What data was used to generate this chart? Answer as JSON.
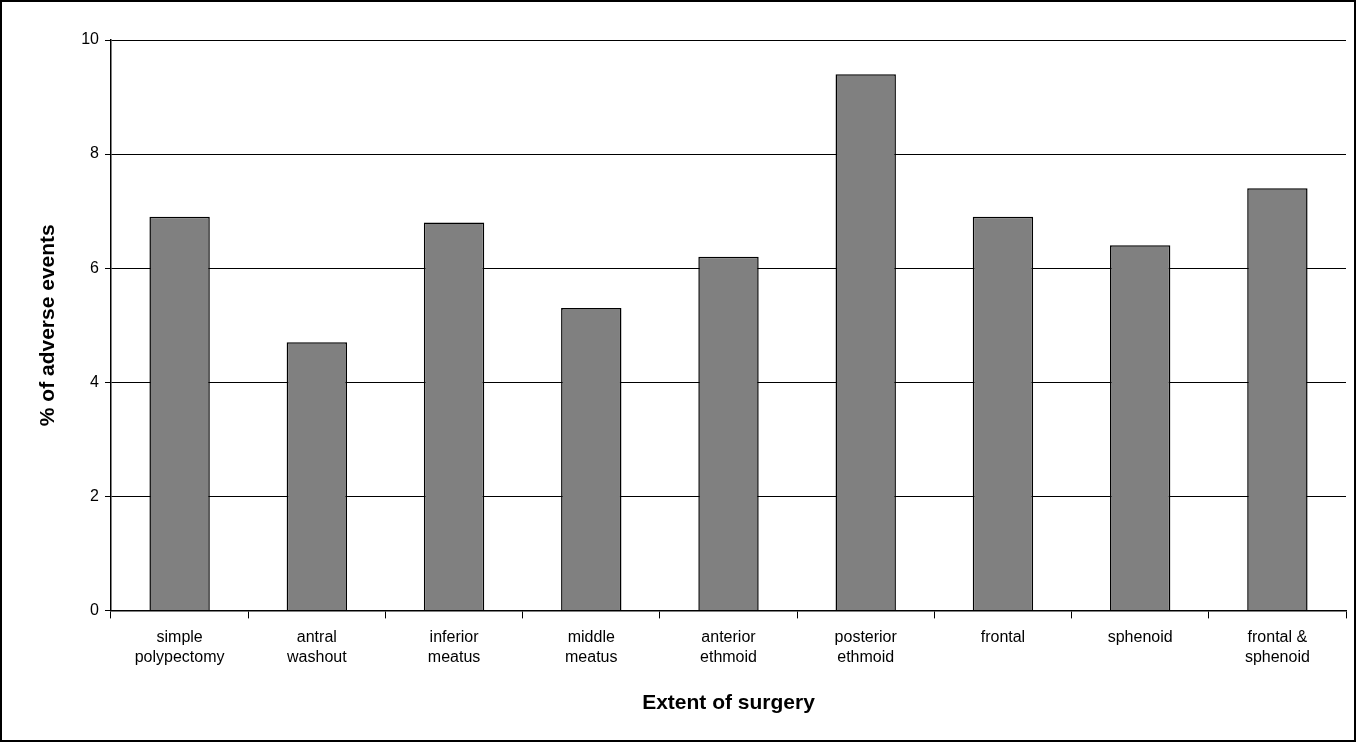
{
  "chart_data": {
    "type": "bar",
    "xlabel": "Extent of surgery",
    "ylabel": "% of adverse events",
    "categories": [
      "simple polypectomy",
      "antral washout",
      "inferior meatus",
      "middle meatus",
      "anterior ethmoid",
      "posterior ethmoid",
      "frontal",
      "sphenoid",
      "frontal & sphenoid"
    ],
    "values": [
      6.9,
      4.7,
      6.8,
      5.3,
      6.2,
      9.4,
      6.9,
      6.4,
      7.4
    ],
    "color": "#808080",
    "ylim": [
      0,
      10
    ],
    "yticks": [
      0,
      2,
      4,
      6,
      8,
      10
    ],
    "grid": "y",
    "legend": false
  }
}
